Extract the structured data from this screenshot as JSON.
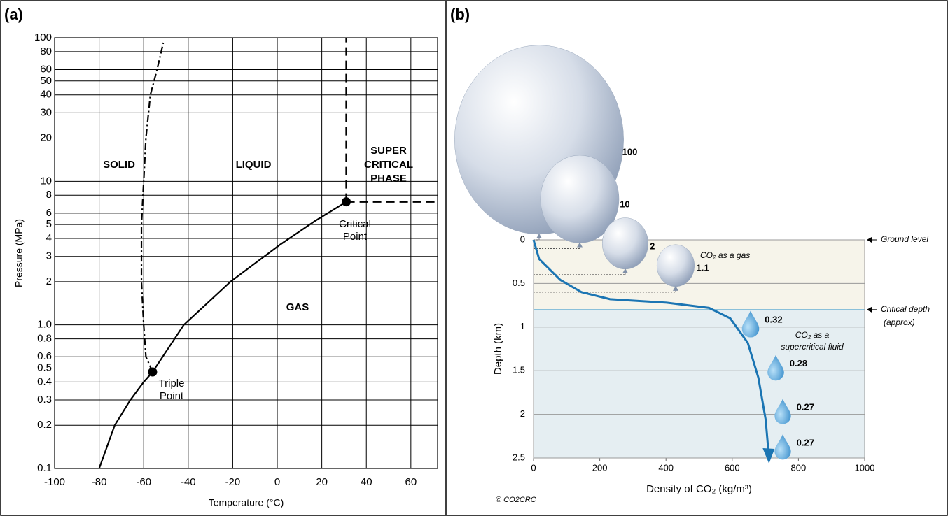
{
  "chart_data": [
    {
      "type": "phase",
      "label": "(a)",
      "xlabel": "Temperature (°C)",
      "ylabel": "Pressure (MPa)",
      "xlim": [
        -100,
        72
      ],
      "ylim": [
        0.1,
        100
      ],
      "log_y": true,
      "grid": true,
      "xticks": [
        -100,
        -80,
        -60,
        -40,
        -20,
        0,
        20,
        40,
        60
      ],
      "yticks": [
        0.1,
        0.2,
        0.3,
        0.4,
        0.5,
        0.6,
        0.8,
        {
          "value": 1,
          "label": "1.0"
        },
        2,
        3,
        4,
        5,
        6,
        8,
        10,
        20,
        30,
        40,
        50,
        60,
        80,
        100
      ],
      "curves": [
        {
          "style": "solid",
          "x": [
            -80,
            -73,
            -66,
            -60,
            -56
          ],
          "y": [
            0.1,
            0.2,
            0.3,
            0.4,
            0.47
          ]
        },
        {
          "style": "solid",
          "x": [
            -56,
            -42,
            -21,
            1,
            17,
            31
          ],
          "y": [
            0.47,
            1.0,
            2,
            3.6,
            5.3,
            7.2
          ]
        },
        {
          "style": "dashdot",
          "x": [
            -56,
            -59,
            -60,
            -61,
            -61,
            -60,
            -59,
            -57,
            -54,
            -51
          ],
          "y": [
            0.47,
            0.6,
            1,
            2,
            5,
            10,
            20,
            40,
            60,
            95
          ]
        }
      ],
      "points": {
        "x": [
          -56,
          31
        ],
        "y": [
          0.47,
          7.2
        ]
      },
      "color": "#000000",
      "annotations": [
        [
          "SOLID"
        ],
        [
          "LIQUID"
        ],
        [
          "GAS"
        ],
        [
          "SUPER",
          "CRITICAL",
          "PHASE"
        ],
        [
          "Critical",
          "Point"
        ],
        [
          "Triple",
          "Point"
        ]
      ]
    },
    {
      "type": "depth",
      "label": "(b)",
      "xlabel": "Density of CO₂ (kg/m³)",
      "ylabel": "Depth (km)",
      "xlim": [
        0,
        1000
      ],
      "ylim": [
        0,
        2.5
      ],
      "y_reversed": true,
      "xticks": [
        0,
        200,
        400,
        600,
        800,
        1000
      ],
      "yticks": [
        0,
        0.5,
        1,
        1.5,
        2,
        2.5
      ],
      "curve": {
        "color": "#1b75b3",
        "x": [
          0,
          17,
          81,
          145,
          231,
          402,
          530,
          594,
          647,
          679,
          701,
          711
        ],
        "y": [
          0,
          0.22,
          0.46,
          0.6,
          0.68,
          0.72,
          0.78,
          0.9,
          1.18,
          1.58,
          2.06,
          2.5
        ]
      },
      "critical_depth": 0.8,
      "volumes": {
        "depths": [
          0,
          0.1,
          0.4,
          0.6,
          1,
          1.5,
          2,
          2.5
        ],
        "values": [
          100,
          10,
          2,
          1.1,
          0.32,
          0.28,
          0.27,
          0.27
        ],
        "color": "#1b75b3"
      },
      "annotations": {
        "ground": "Ground level",
        "critical": [
          "Critical depth",
          "(approx)"
        ],
        "gas": "CO₂ as a gas",
        "fluid": [
          "CO₂ as a",
          "supercritical fluid"
        ],
        "credit": "© CO2CRC"
      }
    }
  ]
}
